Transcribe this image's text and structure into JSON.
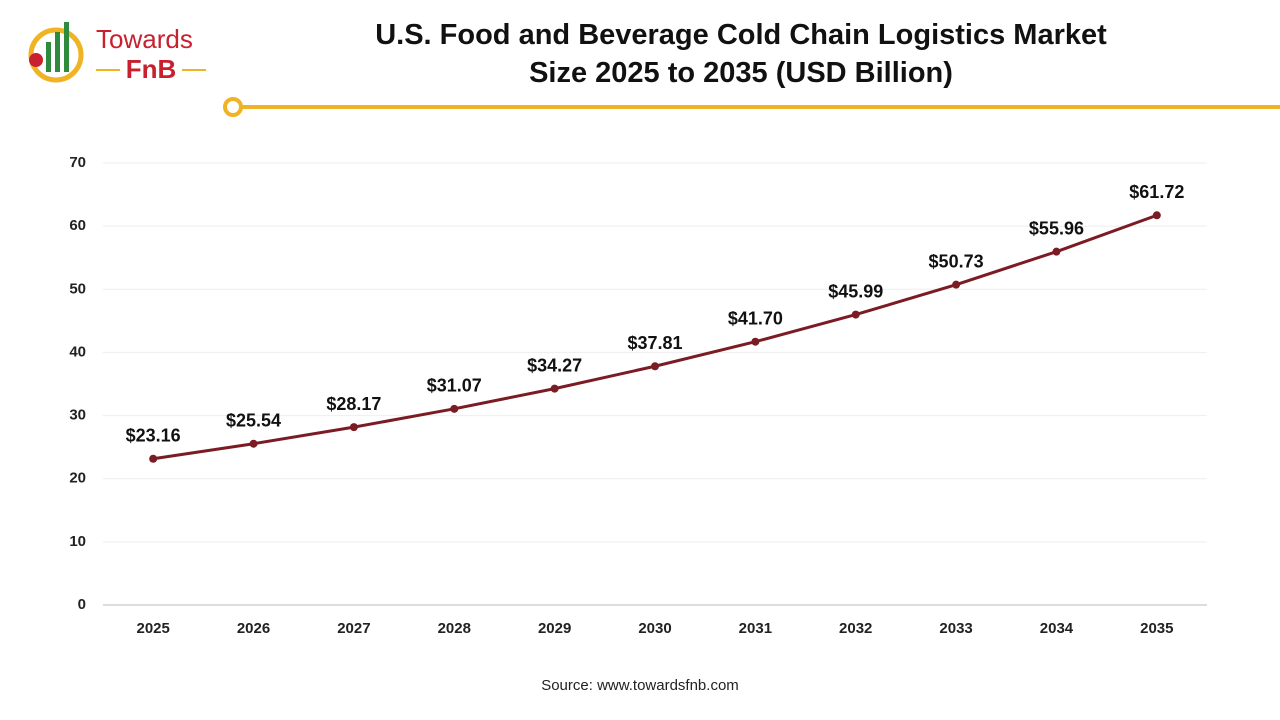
{
  "logo": {
    "name": "Towards",
    "brand": "FnB"
  },
  "chart_data": {
    "type": "line",
    "title": "U.S. Food and Beverage Cold Chain Logistics Market Size 2025 to 2035 (USD Billion)",
    "categories": [
      "2025",
      "2026",
      "2027",
      "2028",
      "2029",
      "2030",
      "2031",
      "2032",
      "2033",
      "2034",
      "2035"
    ],
    "series": [
      {
        "name": "Market Size",
        "color": "#7b1c24",
        "values": [
          23.16,
          25.54,
          28.17,
          31.07,
          34.27,
          37.81,
          41.7,
          45.99,
          50.73,
          55.96,
          61.72
        ],
        "value_labels": [
          "$23.16",
          "$25.54",
          "$28.17",
          "$31.07",
          "$34.27",
          "$37.81",
          "$41.70",
          "$45.99",
          "$50.73",
          "$55.96",
          "$61.72"
        ]
      }
    ],
    "ylim": [
      0,
      70
    ],
    "yticks": [
      0,
      10,
      20,
      30,
      40,
      50,
      60,
      70
    ],
    "grid": true,
    "source": "Source: www.towardsfnb.com"
  }
}
